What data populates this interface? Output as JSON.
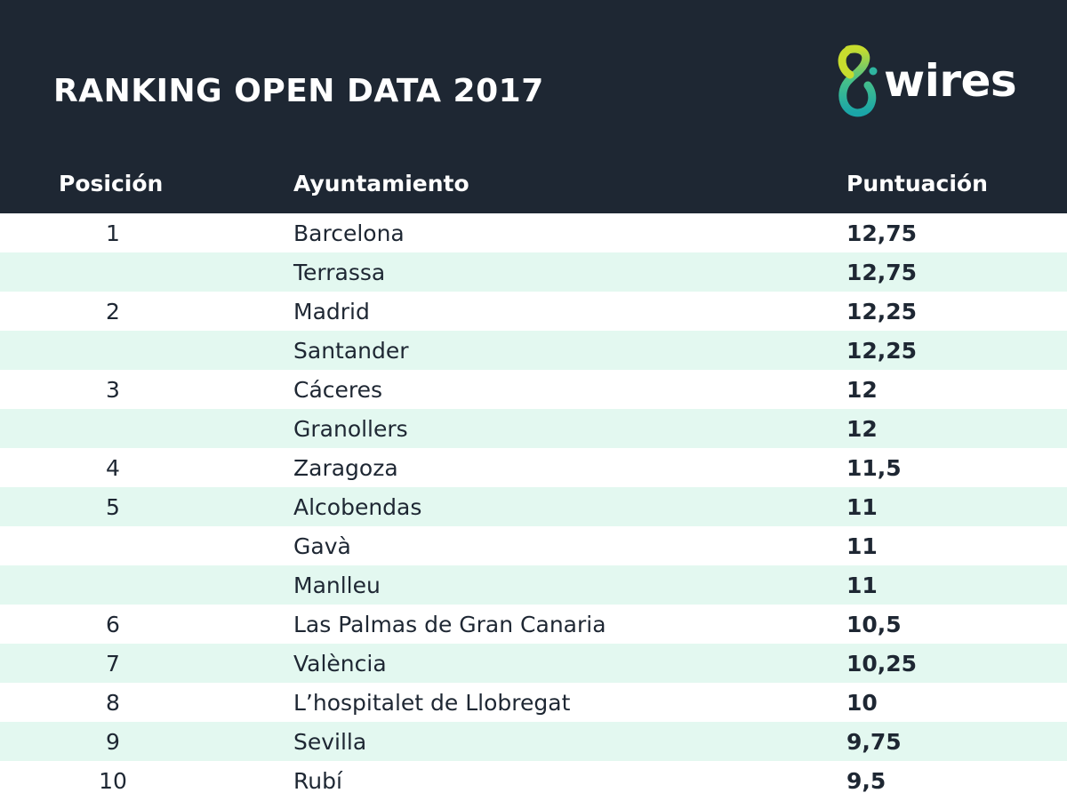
{
  "title": "RANKING OPEN DATA 2017",
  "logo": {
    "text": "wires",
    "mark_icon": "8-mark-icon"
  },
  "headers": {
    "position": "Posición",
    "ayuntamiento": "Ayuntamiento",
    "puntuacion": "Puntuación"
  },
  "rows": [
    {
      "position": "1",
      "name": "Barcelona",
      "score": "12,75"
    },
    {
      "position": "",
      "name": "Terrassa",
      "score": "12,75"
    },
    {
      "position": "2",
      "name": "Madrid",
      "score": "12,25"
    },
    {
      "position": "",
      "name": "Santander",
      "score": "12,25"
    },
    {
      "position": "3",
      "name": "Cáceres",
      "score": "12"
    },
    {
      "position": "",
      "name": "Granollers",
      "score": "12"
    },
    {
      "position": "4",
      "name": "Zaragoza",
      "score": "11,5"
    },
    {
      "position": "5",
      "name": "Alcobendas",
      "score": "11"
    },
    {
      "position": "",
      "name": "Gavà",
      "score": "11"
    },
    {
      "position": "",
      "name": "Manlleu",
      "score": "11"
    },
    {
      "position": "6",
      "name": "Las Palmas de Gran Canaria",
      "score": "10,5"
    },
    {
      "position": "7",
      "name": "València",
      "score": "10,25"
    },
    {
      "position": "8",
      "name": "L’hospitalet de Llobregat",
      "score": "10"
    },
    {
      "position": "9",
      "name": "Sevilla",
      "score": "9,75"
    },
    {
      "position": "10",
      "name": "Rubí",
      "score": "9,5"
    }
  ],
  "colors": {
    "header_bg": "#1e2733",
    "row_alt": "#e3f8f0",
    "text": "#1e2733",
    "logo_green": "#b5d334",
    "logo_teal": "#1aa99a"
  }
}
